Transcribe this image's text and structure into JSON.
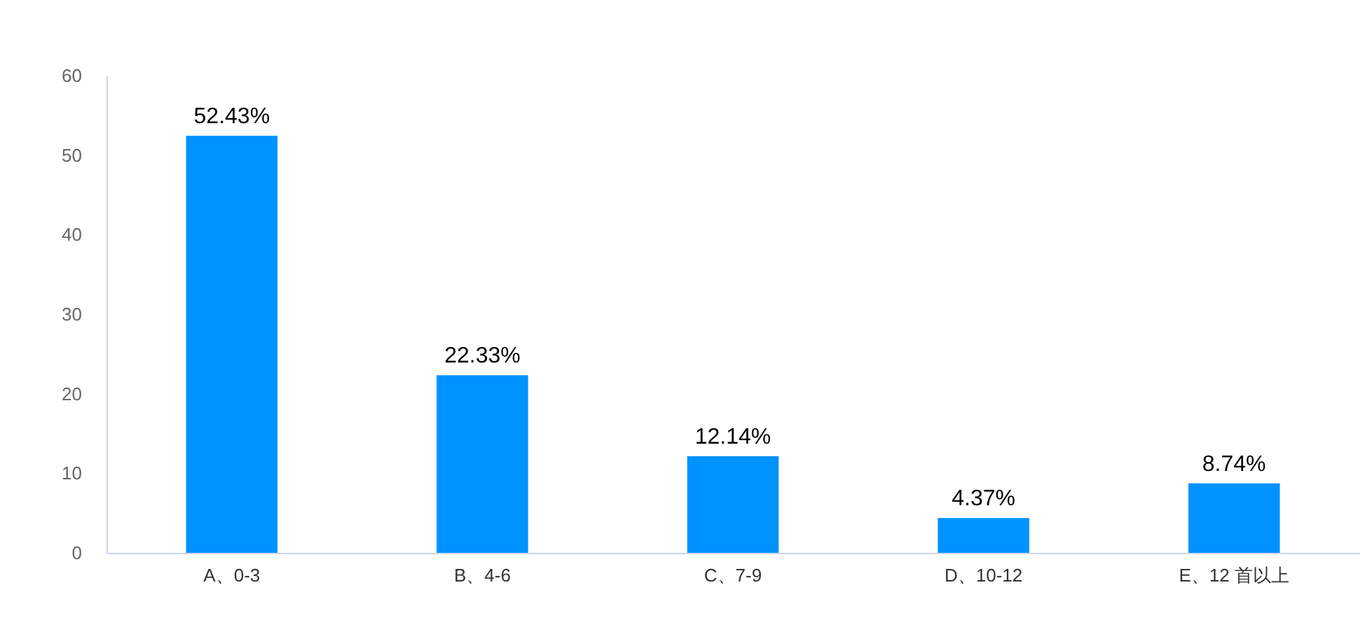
{
  "chart_data": {
    "type": "bar",
    "categories": [
      "A、0-3",
      "B、4-6",
      "C、7-9",
      "D、10-12",
      "E、12 首以上"
    ],
    "values": [
      52.43,
      22.33,
      12.14,
      4.37,
      8.74
    ],
    "value_labels": [
      "52.43%",
      "22.33%",
      "12.14%",
      "4.37%",
      "8.74%"
    ],
    "color": "#0092ff",
    "ylim": [
      0,
      60
    ],
    "yticks": [
      0,
      10,
      20,
      30,
      40,
      50,
      60
    ],
    "grid": false
  }
}
